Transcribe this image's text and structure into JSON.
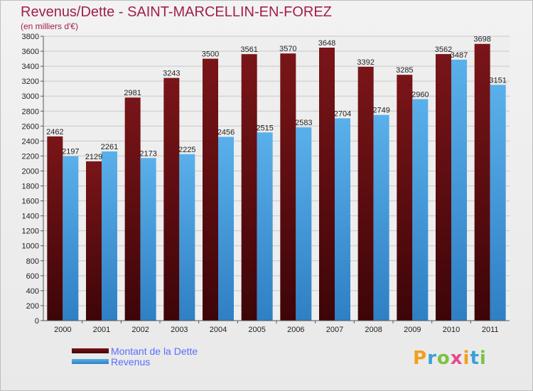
{
  "title": "Revenus/Dette - SAINT-MARCELLIN-EN-FOREZ",
  "subtitle": "(en milliers d'€)",
  "colors": {
    "dette_top": "#7a1518",
    "dette_bottom": "#3d0508",
    "revenus_top": "#5ab0ea",
    "revenus_bottom": "#2f7fc4",
    "grid": "#c8c8c8"
  },
  "chart_data": {
    "type": "bar",
    "categories": [
      "2000",
      "2001",
      "2002",
      "2003",
      "2004",
      "2005",
      "2006",
      "2007",
      "2008",
      "2009",
      "2010",
      "2011"
    ],
    "series": [
      {
        "name": "Montant de la Dette",
        "values": [
          2462,
          2129,
          2981,
          3243,
          3500,
          3561,
          3570,
          3648,
          3392,
          3285,
          3562,
          3698
        ]
      },
      {
        "name": "Revenus",
        "values": [
          2197,
          2261,
          2173,
          2225,
          2456,
          2515,
          2583,
          2704,
          2749,
          2960,
          3487,
          3151
        ]
      }
    ],
    "ylim": [
      0,
      3800
    ],
    "yticks": [
      0,
      200,
      400,
      600,
      800,
      1000,
      1200,
      1400,
      1600,
      1800,
      2000,
      2200,
      2400,
      2600,
      2800,
      3000,
      3200,
      3400,
      3600,
      3800
    ],
    "grid": true,
    "legend": "bottom-left"
  },
  "legend": {
    "items": [
      {
        "label": "Montant de la Dette"
      },
      {
        "label": "Revenus"
      }
    ]
  },
  "logo": {
    "letters": [
      "P",
      "r",
      "o",
      "x",
      "i",
      "t",
      "i"
    ],
    "colors": [
      "#f0a020",
      "#3aa0d8",
      "#7cc242",
      "#e84a8a",
      "#f0a020",
      "#3aa0d8",
      "#7cc242"
    ]
  }
}
